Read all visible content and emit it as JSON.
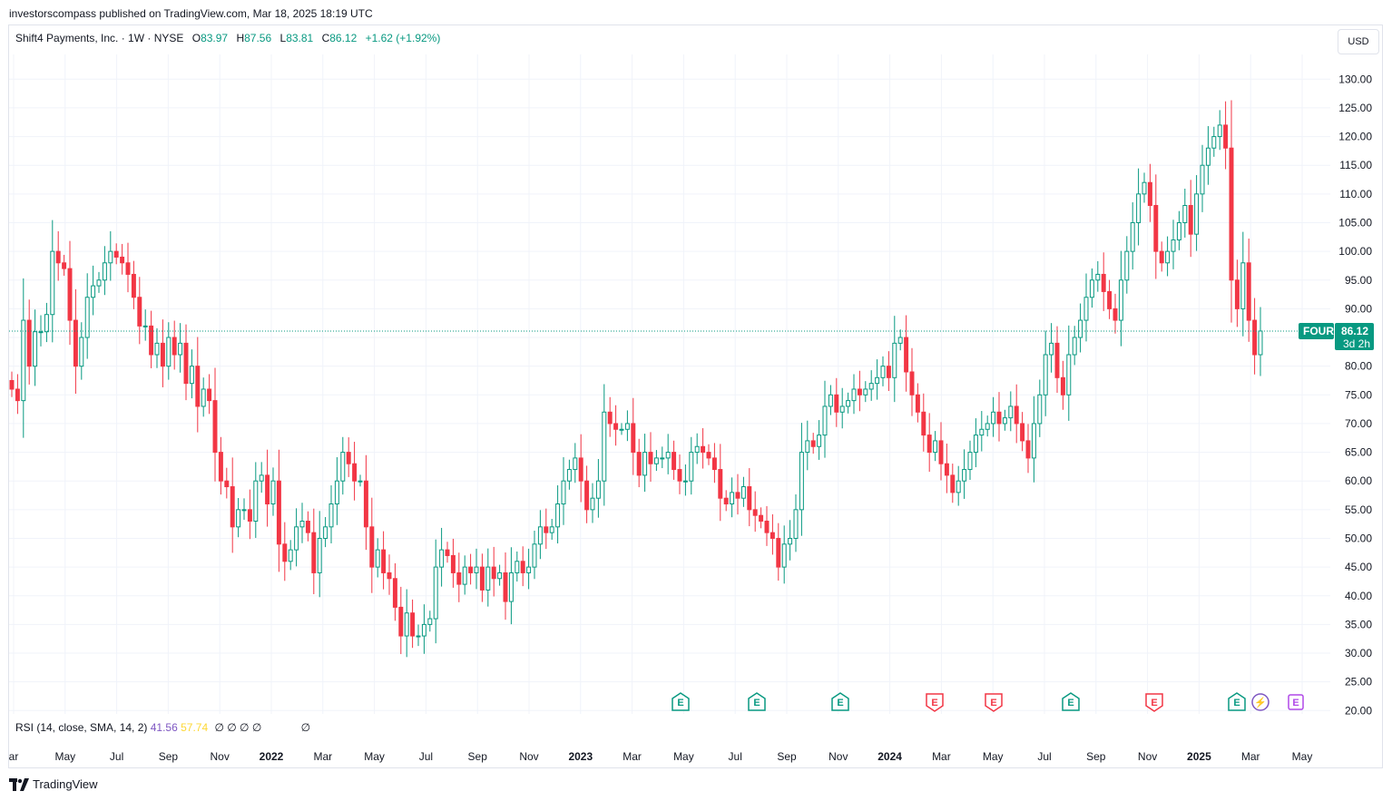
{
  "publisher_line": "investorscompass published on TradingView.com, Mar 18, 2025 18:19 UTC",
  "legend": {
    "symbol": "Shift4 Payments, Inc. · 1W · NYSE",
    "o_label": "O",
    "o": "83.97",
    "h_label": "H",
    "h": "87.56",
    "l_label": "L",
    "l": "83.81",
    "c_label": "C",
    "c": "86.12",
    "change": "+1.62 (+1.92%)"
  },
  "currency_button": "USD",
  "price_label": {
    "ticker": "FOUR",
    "price": "86.12",
    "countdown": "3d 2h"
  },
  "rsi": {
    "label": "RSI (14, close, SMA, 14, 2)",
    "rsi_value": "41.56",
    "sma_value": "57.74",
    "na_values": "∅ ∅ ∅ ∅",
    "na_value2": "∅"
  },
  "brand": "TradingView",
  "colors": {
    "up": "#089981",
    "down": "#f23645",
    "grid": "#f0f3fa",
    "text": "#131722",
    "rsi": "#7e57c2",
    "sma": "#fdd835",
    "event_purple": "#b048e8"
  },
  "chart_data": {
    "type": "candlestick",
    "timeframe": "1W",
    "ylim": [
      20,
      130
    ],
    "y_ticks": [
      "130.00",
      "125.00",
      "120.00",
      "115.00",
      "110.00",
      "105.00",
      "100.00",
      "95.00",
      "90.00",
      "85.00",
      "80.00",
      "75.00",
      "70.00",
      "65.00",
      "60.00",
      "55.00",
      "50.00",
      "45.00",
      "40.00",
      "35.00",
      "30.00",
      "25.00",
      "20.00"
    ],
    "x_ticks": [
      "ar",
      "May",
      "Jul",
      "Sep",
      "Nov",
      "2022",
      "Mar",
      "May",
      "Jul",
      "Sep",
      "Nov",
      "2023",
      "Mar",
      "May",
      "Jul",
      "Sep",
      "Nov",
      "2024",
      "Mar",
      "May",
      "Jul",
      "Sep",
      "Nov",
      "2025",
      "Mar",
      "May"
    ],
    "x_ticks_bold": [
      "2022",
      "2023",
      "2024",
      "2025"
    ],
    "last_close": 86.12,
    "closes": [
      76,
      74,
      88,
      80,
      86,
      86,
      89,
      100,
      98,
      97,
      88,
      80,
      85,
      92,
      94,
      95,
      98,
      100,
      99,
      98,
      96,
      92,
      87,
      87,
      82,
      84,
      80,
      85,
      82,
      84,
      77,
      80,
      73,
      76,
      74,
      65,
      60,
      59,
      52,
      55,
      55,
      53,
      60,
      61,
      56,
      60,
      49,
      46,
      48,
      52,
      53,
      51,
      44,
      50,
      52,
      56,
      60,
      65,
      63,
      60,
      60,
      52,
      45,
      48,
      44,
      43,
      38,
      33,
      37,
      33,
      33,
      35,
      36,
      45,
      48,
      47,
      44,
      42,
      45,
      44,
      45,
      41,
      45,
      43,
      44,
      39,
      44,
      46,
      44,
      45,
      49,
      52,
      51,
      52,
      56,
      60,
      62,
      64,
      60,
      55,
      57,
      60,
      72,
      70,
      69,
      69,
      70,
      65,
      61,
      65,
      63,
      64,
      64,
      65,
      62,
      60,
      60,
      65,
      66,
      65,
      64,
      62,
      57,
      56,
      58,
      57,
      59,
      55,
      54,
      53,
      51,
      50,
      45,
      49,
      50,
      55,
      65,
      67,
      66,
      68,
      73,
      75,
      72,
      73,
      74,
      76,
      75,
      76,
      77,
      78,
      80,
      78,
      84,
      85,
      79,
      75,
      72,
      68,
      65,
      67,
      63,
      61,
      58,
      60,
      62,
      65,
      68,
      69,
      70,
      72,
      70,
      71,
      73,
      70,
      67,
      64,
      70,
      75,
      82,
      84,
      78,
      75,
      82,
      85,
      88,
      92,
      95,
      96,
      93,
      90,
      88,
      95,
      100,
      105,
      110,
      112,
      108,
      100,
      98,
      100,
      102,
      105,
      108,
      103,
      110,
      115,
      118,
      120,
      122,
      118,
      95,
      90,
      98,
      88,
      82,
      86.12
    ]
  },
  "events": [
    {
      "type": "earnings",
      "label": "E",
      "color": "#089981"
    },
    {
      "type": "earnings",
      "label": "E",
      "color": "#089981"
    },
    {
      "type": "earnings",
      "label": "E",
      "color": "#089981"
    },
    {
      "type": "earnings",
      "label": "E",
      "color": "#f23645"
    },
    {
      "type": "earnings",
      "label": "E",
      "color": "#f23645"
    },
    {
      "type": "earnings",
      "label": "E",
      "color": "#089981"
    },
    {
      "type": "earnings",
      "label": "E",
      "color": "#f23645"
    },
    {
      "type": "earnings",
      "label": "E",
      "color": "#089981"
    },
    {
      "type": "split",
      "label": "⚡",
      "color": "#7e57c2"
    },
    {
      "type": "earnings-upcoming",
      "label": "E",
      "color": "#b048e8"
    }
  ]
}
